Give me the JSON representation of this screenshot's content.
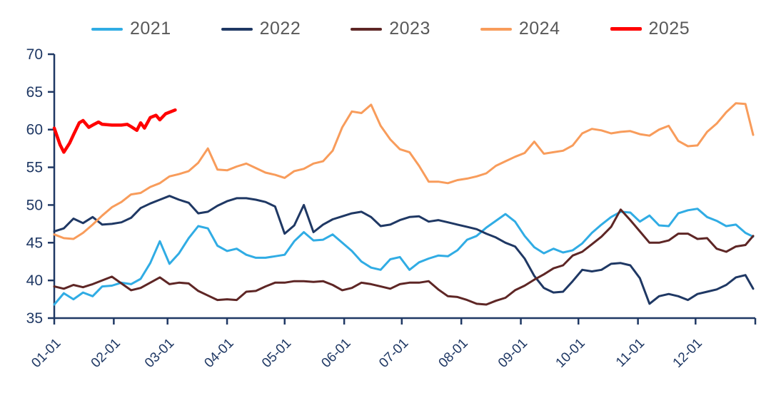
{
  "chart_data": {
    "type": "line",
    "title": "",
    "xlabel": "",
    "ylabel": "",
    "grid": false,
    "legend_position": "top",
    "legend_text_color": "#595959",
    "axis_color": "#1F3864",
    "background_color": "#FFFFFF",
    "y_axis": {
      "min": 35,
      "max": 70,
      "step": 5,
      "tick_labels": [
        "35",
        "40",
        "45",
        "50",
        "55",
        "60",
        "65",
        "70"
      ]
    },
    "x_axis": {
      "unit": "month-day (MM-DD)",
      "tick_labels": [
        "01-01",
        "02-01",
        "03-01",
        "04-01",
        "05-01",
        "06-01",
        "07-01",
        "08-01",
        "09-01",
        "10-01",
        "11-01",
        "12-01"
      ],
      "tick_days": [
        1,
        32,
        60,
        91,
        121,
        152,
        182,
        213,
        244,
        274,
        305,
        335
      ],
      "range_days": [
        1,
        365
      ]
    },
    "series": [
      {
        "name": "2021",
        "color": "#30ACE4",
        "line_width": 3,
        "days": [
          1,
          6,
          11,
          16,
          21,
          26,
          31,
          36,
          41,
          46,
          51,
          56,
          61,
          66,
          71,
          76,
          81,
          86,
          91,
          96,
          101,
          106,
          111,
          116,
          121,
          126,
          131,
          136,
          141,
          146,
          151,
          156,
          161,
          166,
          171,
          176,
          181,
          186,
          191,
          196,
          201,
          206,
          211,
          216,
          221,
          226,
          231,
          236,
          241,
          246,
          251,
          256,
          261,
          266,
          271,
          276,
          281,
          286,
          291,
          296,
          301,
          306,
          311,
          316,
          321,
          326,
          331,
          336,
          341,
          346,
          351,
          356,
          361,
          365
        ],
        "values": [
          36.8,
          38.3,
          37.5,
          38.4,
          37.9,
          39.2,
          39.3,
          39.7,
          39.5,
          40.2,
          42.3,
          45.2,
          42.2,
          43.6,
          45.6,
          47.2,
          46.9,
          44.6,
          43.9,
          44.2,
          43.4,
          43.0,
          43.0,
          43.2,
          43.4,
          45.2,
          46.4,
          45.3,
          45.4,
          46.1,
          45.0,
          43.9,
          42.5,
          41.7,
          41.4,
          42.8,
          43.1,
          41.4,
          42.4,
          42.9,
          43.3,
          43.2,
          44.0,
          45.4,
          45.9,
          47.0,
          47.9,
          48.8,
          47.8,
          45.9,
          44.4,
          43.6,
          44.2,
          43.7,
          44.0,
          44.9,
          46.3,
          47.4,
          48.4,
          49.1,
          49.0,
          47.8,
          48.6,
          47.3,
          47.2,
          48.9,
          49.3,
          49.5,
          48.4,
          47.9,
          47.2,
          47.4,
          46.3,
          45.8
        ]
      },
      {
        "name": "2022",
        "color": "#1F3864",
        "line_width": 3,
        "days": [
          1,
          6,
          11,
          16,
          21,
          26,
          31,
          36,
          41,
          46,
          51,
          56,
          61,
          66,
          71,
          76,
          81,
          86,
          91,
          96,
          101,
          106,
          111,
          116,
          121,
          126,
          131,
          136,
          141,
          146,
          151,
          156,
          161,
          166,
          171,
          176,
          181,
          186,
          191,
          196,
          201,
          206,
          211,
          216,
          221,
          226,
          231,
          236,
          241,
          246,
          251,
          256,
          261,
          266,
          271,
          276,
          281,
          286,
          291,
          296,
          301,
          306,
          311,
          316,
          321,
          326,
          331,
          336,
          341,
          346,
          351,
          356,
          361,
          365
        ],
        "values": [
          46.5,
          46.9,
          48.2,
          47.6,
          48.4,
          47.4,
          47.5,
          47.7,
          48.3,
          49.6,
          50.2,
          50.7,
          51.2,
          50.7,
          50.3,
          48.9,
          49.1,
          49.9,
          50.5,
          50.9,
          50.9,
          50.7,
          50.4,
          49.8,
          46.2,
          47.3,
          50.0,
          46.4,
          47.4,
          48.1,
          48.5,
          48.9,
          49.1,
          48.4,
          47.2,
          47.4,
          48.0,
          48.4,
          48.5,
          47.8,
          48.0,
          47.7,
          47.4,
          47.1,
          46.8,
          46.2,
          45.7,
          45.0,
          44.5,
          42.9,
          40.6,
          39.0,
          38.4,
          38.5,
          39.9,
          41.4,
          41.2,
          41.4,
          42.2,
          42.3,
          42.0,
          40.3,
          36.9,
          37.9,
          38.2,
          37.9,
          37.4,
          38.2,
          38.5,
          38.8,
          39.4,
          40.4,
          40.7,
          38.9
        ]
      },
      {
        "name": "2023",
        "color": "#5E2625",
        "line_width": 3,
        "days": [
          1,
          6,
          11,
          16,
          21,
          26,
          31,
          36,
          41,
          46,
          51,
          56,
          61,
          66,
          71,
          76,
          81,
          86,
          91,
          96,
          101,
          106,
          111,
          116,
          121,
          126,
          131,
          136,
          141,
          146,
          151,
          156,
          161,
          166,
          171,
          176,
          181,
          186,
          191,
          196,
          201,
          206,
          211,
          216,
          221,
          226,
          231,
          236,
          241,
          246,
          251,
          256,
          261,
          266,
          271,
          276,
          281,
          286,
          291,
          296,
          301,
          306,
          311,
          316,
          321,
          326,
          331,
          336,
          341,
          346,
          351,
          356,
          361,
          365
        ],
        "values": [
          39.2,
          38.9,
          39.4,
          39.1,
          39.5,
          40.0,
          40.5,
          39.6,
          38.7,
          39.0,
          39.7,
          40.4,
          39.5,
          39.7,
          39.6,
          38.6,
          38.0,
          37.4,
          37.5,
          37.4,
          38.5,
          38.6,
          39.2,
          39.7,
          39.7,
          39.9,
          39.9,
          39.8,
          39.9,
          39.4,
          38.7,
          39.0,
          39.7,
          39.5,
          39.2,
          38.9,
          39.5,
          39.7,
          39.7,
          39.9,
          38.8,
          37.9,
          37.8,
          37.4,
          36.9,
          36.8,
          37.3,
          37.7,
          38.7,
          39.3,
          40.1,
          40.8,
          41.6,
          42.0,
          43.3,
          43.8,
          44.8,
          45.8,
          47.1,
          49.4,
          48.0,
          46.5,
          45.0,
          45.0,
          45.3,
          46.2,
          46.2,
          45.5,
          45.6,
          44.2,
          43.8,
          44.5,
          44.7,
          45.9
        ]
      },
      {
        "name": "2024",
        "color": "#F89C5B",
        "line_width": 3,
        "days": [
          1,
          6,
          11,
          16,
          21,
          26,
          31,
          36,
          41,
          46,
          51,
          56,
          61,
          66,
          71,
          76,
          81,
          86,
          91,
          96,
          101,
          106,
          111,
          116,
          121,
          126,
          131,
          136,
          141,
          146,
          151,
          156,
          161,
          166,
          171,
          176,
          181,
          186,
          191,
          196,
          201,
          206,
          211,
          216,
          221,
          226,
          231,
          236,
          241,
          246,
          251,
          256,
          261,
          266,
          271,
          276,
          281,
          286,
          291,
          296,
          301,
          306,
          311,
          316,
          321,
          326,
          331,
          336,
          341,
          346,
          351,
          356,
          361,
          365
        ],
        "values": [
          46.1,
          45.6,
          45.5,
          46.3,
          47.4,
          48.6,
          49.7,
          50.4,
          51.4,
          51.6,
          52.4,
          52.9,
          53.8,
          54.1,
          54.5,
          55.6,
          57.5,
          54.7,
          54.6,
          55.1,
          55.5,
          54.9,
          54.3,
          54.0,
          53.6,
          54.5,
          54.8,
          55.5,
          55.8,
          57.2,
          60.3,
          62.4,
          62.2,
          63.3,
          60.5,
          58.7,
          57.4,
          57.0,
          55.2,
          53.1,
          53.1,
          52.9,
          53.3,
          53.5,
          53.8,
          54.2,
          55.2,
          55.8,
          56.4,
          56.9,
          58.4,
          56.8,
          57.0,
          57.2,
          57.9,
          59.5,
          60.1,
          59.9,
          59.5,
          59.7,
          59.8,
          59.4,
          59.2,
          60.0,
          60.5,
          58.5,
          57.8,
          57.9,
          59.7,
          60.8,
          62.3,
          63.5,
          63.4,
          59.3
        ]
      },
      {
        "name": "2025",
        "color": "#FF0000",
        "line_width": 4.5,
        "days": [
          1,
          4,
          6,
          9,
          11,
          14,
          16,
          19,
          21,
          24,
          26,
          31,
          36,
          39,
          41,
          44,
          46,
          48,
          51,
          54,
          56,
          59,
          61,
          64
        ],
        "values": [
          60.2,
          58.0,
          57.0,
          58.2,
          59.3,
          60.9,
          61.2,
          60.3,
          60.6,
          61.0,
          60.7,
          60.6,
          60.6,
          60.7,
          60.4,
          59.9,
          60.9,
          60.2,
          61.6,
          61.9,
          61.3,
          62.1,
          62.3,
          62.6
        ]
      }
    ]
  }
}
